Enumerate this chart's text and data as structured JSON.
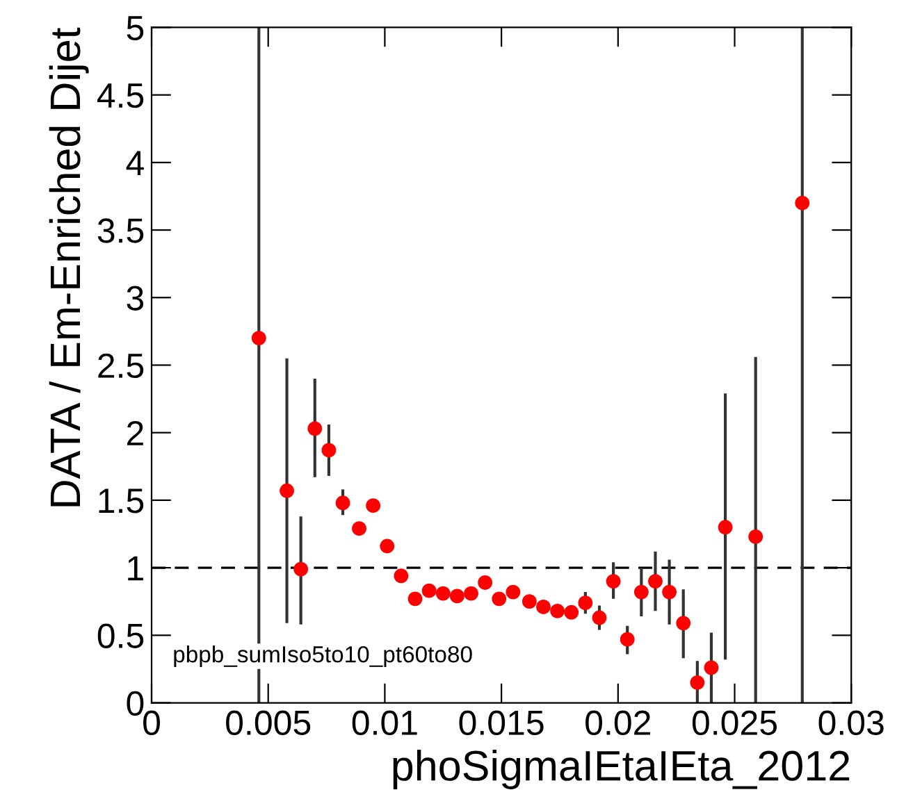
{
  "chart_data": {
    "type": "scatter",
    "xlabel": "phoSigmaIEtaIEta_2012",
    "ylabel": "DATA / Em-Enriched Dijet",
    "x": [
      0.0046,
      0.0058,
      0.0064,
      0.007,
      0.0076,
      0.0082,
      0.0089,
      0.0095,
      0.0101,
      0.0107,
      0.0113,
      0.0119,
      0.0125,
      0.0131,
      0.0137,
      0.0143,
      0.0149,
      0.0155,
      0.0162,
      0.0168,
      0.0174,
      0.018,
      0.0186,
      0.0192,
      0.0198,
      0.0204,
      0.021,
      0.0216,
      0.0222,
      0.0228,
      0.0234,
      0.024,
      0.0246,
      0.0259,
      0.0279
    ],
    "values": [
      2.7,
      1.57,
      0.99,
      2.03,
      1.87,
      1.48,
      1.29,
      1.46,
      1.16,
      0.94,
      0.77,
      0.83,
      0.81,
      0.79,
      0.81,
      0.89,
      0.77,
      0.82,
      0.75,
      0.71,
      0.68,
      0.67,
      0.74,
      0.63,
      0.9,
      0.47,
      0.82,
      0.9,
      0.82,
      0.59,
      0.15,
      0.26,
      1.3,
      1.23,
      3.7
    ],
    "errors": [
      [
        0,
        5
      ],
      [
        0.59,
        2.55
      ],
      [
        0.58,
        1.38
      ],
      [
        1.67,
        2.4
      ],
      [
        1.68,
        2.06
      ],
      [
        1.39,
        1.58
      ],
      null,
      null,
      null,
      null,
      null,
      null,
      null,
      null,
      null,
      null,
      null,
      null,
      null,
      null,
      null,
      null,
      0.08,
      0.09,
      [
        0.77,
        1.04
      ],
      [
        0.36,
        0.57
      ],
      [
        0.64,
        0.99
      ],
      [
        0.68,
        1.12
      ],
      [
        0.58,
        1.06
      ],
      [
        0.33,
        0.84
      ],
      [
        0,
        0.31
      ],
      [
        0,
        0.52
      ],
      [
        0.32,
        2.29
      ],
      [
        0,
        2.56
      ],
      [
        0,
        5
      ]
    ],
    "color": "#ff0000",
    "marker": "circle",
    "xlim": [
      0,
      0.03
    ],
    "ylim": [
      0,
      5
    ],
    "xticks": [
      0,
      0.005,
      0.01,
      0.015,
      0.02,
      0.025,
      0.03
    ],
    "yticks": [
      0,
      0.5,
      1,
      1.5,
      2,
      2.5,
      3,
      3.5,
      4,
      4.5,
      5
    ],
    "ref_lines": [
      {
        "axis": "y",
        "value": 1,
        "color": "#000000",
        "line_style": "dashed"
      }
    ],
    "annotations": [
      "pbpb_sumIso5to10_pt60to80"
    ],
    "grid": false
  }
}
